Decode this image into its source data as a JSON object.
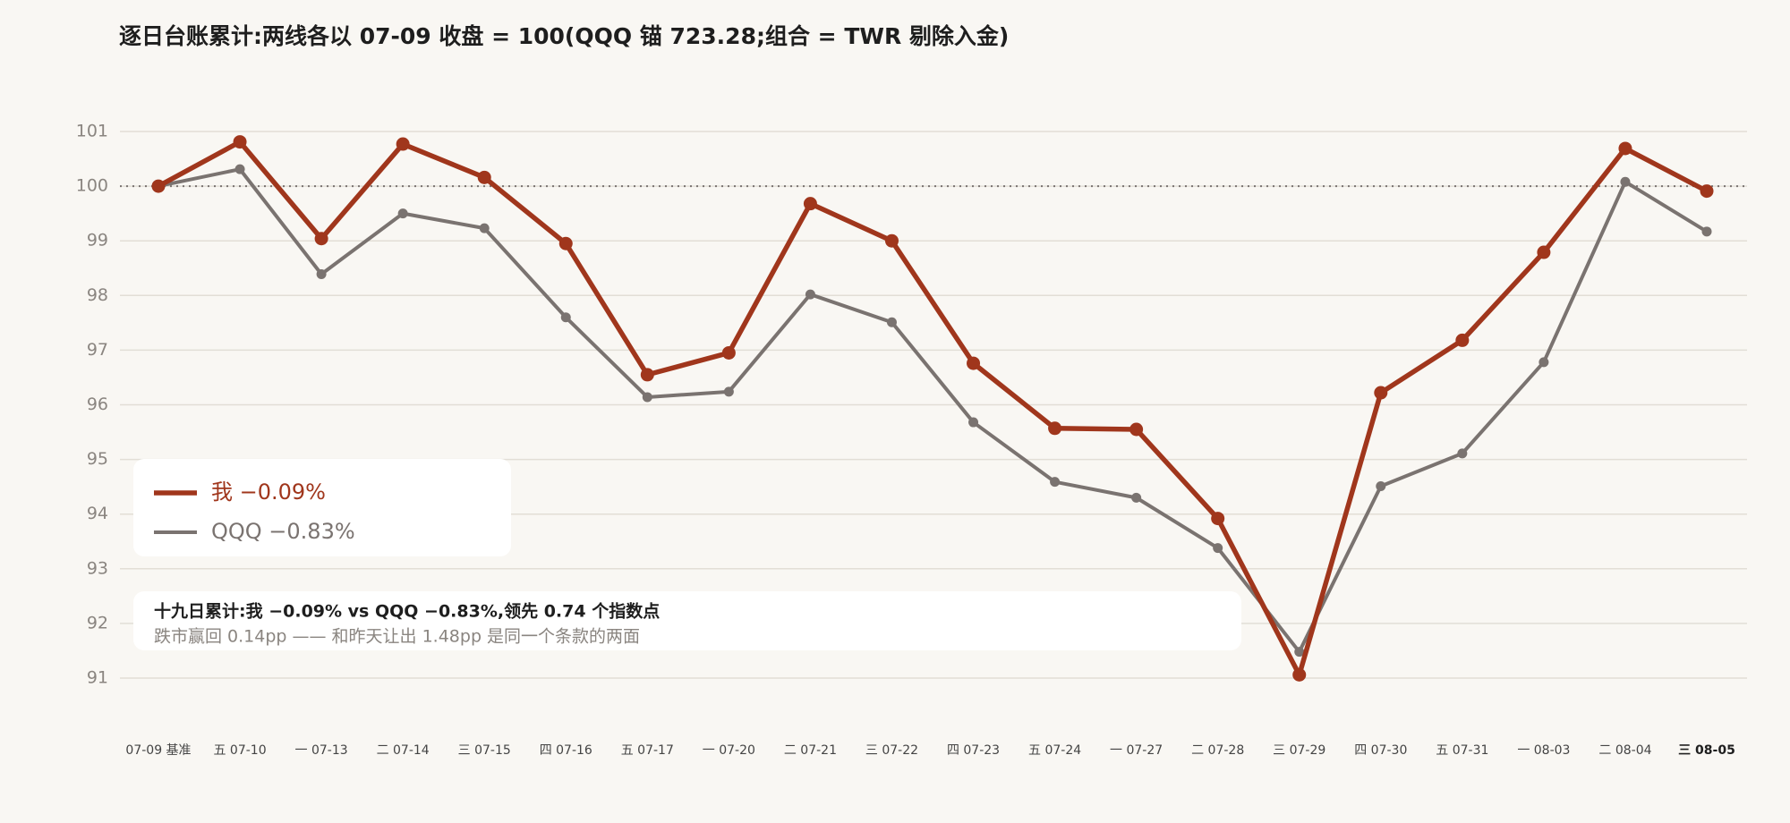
{
  "chart_data": {
    "type": "line",
    "title": "逐日台账累计:两线各以 07-09 收盘 = 100(QQQ 锚 723.28;组合 = TWR 剔除入金)",
    "categories": [
      "07-09 基准",
      "五 07-10",
      "一 07-13",
      "二 07-14",
      "三 07-15",
      "四 07-16",
      "五 07-17",
      "一 07-20",
      "二 07-21",
      "三 07-22",
      "四 07-23",
      "五 07-24",
      "一 07-27",
      "二 07-28",
      "三 07-29",
      "四 07-30",
      "五 07-31",
      "一 08-03",
      "二 08-04",
      "三 08-05"
    ],
    "series": [
      {
        "name": "我 −0.09%",
        "color": "#a0361c",
        "values": [
          100,
          100.81,
          99.04,
          100.77,
          100.16,
          98.95,
          96.55,
          96.95,
          99.68,
          99.0,
          96.76,
          95.57,
          95.55,
          93.92,
          91.06,
          96.22,
          97.18,
          98.79,
          100.69,
          99.91
        ]
      },
      {
        "name": "QQQ −0.83%",
        "color": "#7a7370",
        "values": [
          100,
          100.31,
          98.39,
          99.5,
          99.23,
          97.6,
          96.14,
          96.24,
          98.02,
          97.51,
          95.68,
          94.59,
          94.3,
          93.38,
          91.48,
          94.51,
          95.11,
          96.78,
          100.08,
          99.17
        ]
      }
    ],
    "ylim": [
      91,
      101
    ],
    "yticks": [
      91,
      92,
      93,
      94,
      95,
      96,
      97,
      98,
      99,
      100,
      101
    ],
    "grid": true,
    "reference_line": 100,
    "annotation": {
      "headline": "十九日累计:我 −0.09% vs QQQ −0.83%,领先 0.74 个指数点",
      "note": "跌市赢回 0.14pp —— 和昨天让出 1.48pp 是同一个条款的两面"
    }
  }
}
